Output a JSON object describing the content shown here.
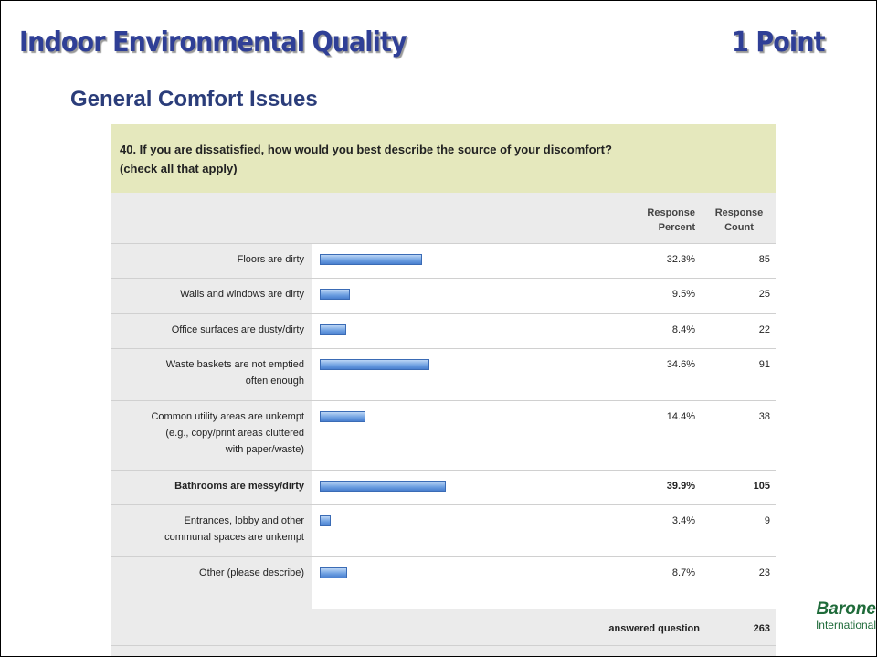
{
  "header": {
    "title": "Indoor Environmental Quality",
    "points": "1 Point",
    "subtitle": "General Comfort Issues"
  },
  "survey": {
    "question_lines": [
      "40. If you are dissatisfied, how would you best describe the source of your discomfort?",
      "(check all that apply)"
    ],
    "columns": [
      [
        "Response",
        "Percent"
      ],
      [
        "Response",
        "Count"
      ]
    ],
    "rows": [
      {
        "label_lines": [
          "Floors are dirty"
        ],
        "percent": 32.3,
        "percent_label": "32.3%",
        "count": 85
      },
      {
        "label_lines": [
          "Walls and windows are dirty"
        ],
        "percent": 9.5,
        "percent_label": "9.5%",
        "count": 25
      },
      {
        "label_lines": [
          "Office surfaces are dusty/dirty"
        ],
        "percent": 8.4,
        "percent_label": "8.4%",
        "count": 22
      },
      {
        "label_lines": [
          "Waste baskets are not emptied",
          "often enough"
        ],
        "percent": 34.6,
        "percent_label": "34.6%",
        "count": 91
      },
      {
        "label_lines": [
          "Common utility areas are unkempt",
          "(e.g., copy/print areas cluttered",
          "with paper/waste)"
        ],
        "percent": 14.4,
        "percent_label": "14.4%",
        "count": 38
      },
      {
        "label_lines": [
          "Bathrooms are messy/dirty"
        ],
        "percent": 39.9,
        "percent_label": "39.9%",
        "count": 105,
        "bold": true
      },
      {
        "label_lines": [
          "Entrances, lobby and other",
          "communal spaces are unkempt"
        ],
        "percent": 3.4,
        "percent_label": "3.4%",
        "count": 9
      },
      {
        "label_lines": [
          "Other (please describe)"
        ],
        "percent": 8.7,
        "percent_label": "8.7%",
        "count": 23
      }
    ],
    "answered": {
      "label": "answered question",
      "count": 263
    }
  },
  "logo": {
    "name": "Barone",
    "subname": "International"
  }
}
